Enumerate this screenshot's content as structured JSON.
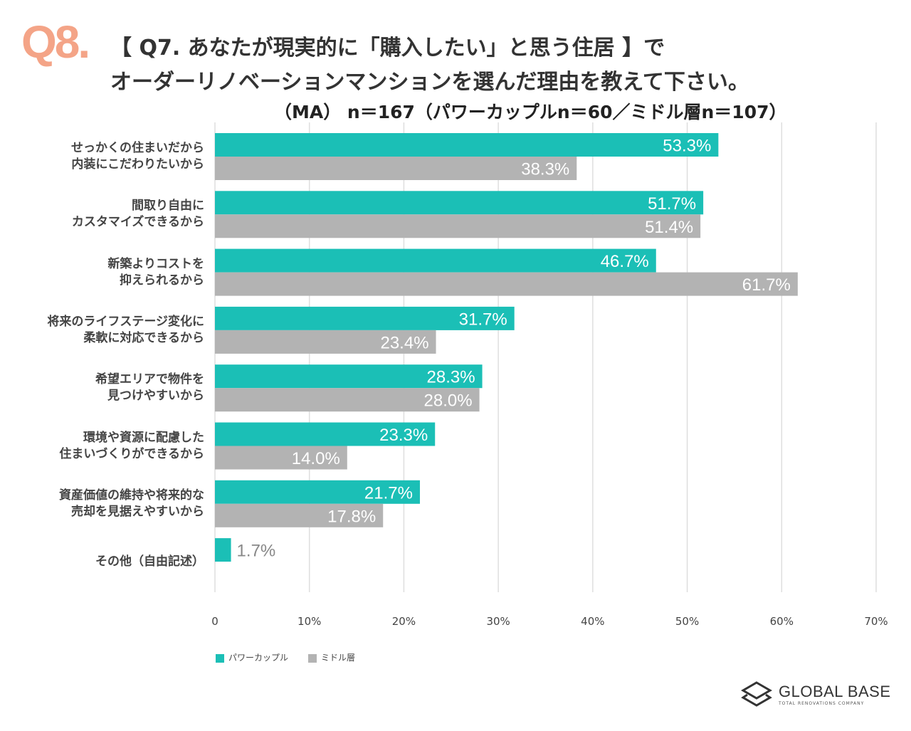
{
  "header": {
    "qnum": "Q8.",
    "title_line1": "【 Q7. あなたが現実的に「購入したい」と思う住居 】で",
    "title_line2": "オーダーリノベーションマンションを選んだ理由を教えて下さい。",
    "subtitle": "（MA） n＝167（パワーカップルn＝60／ミドル層n＝107）"
  },
  "chart_data": {
    "type": "bar",
    "orientation": "horizontal",
    "categories": [
      "せっかくの住まいだから\n内装にこだわりたいから",
      "間取り自由に\nカスタマイズできるから",
      "新築よりコストを\n抑えられるから",
      "将来のライフステージ変化に\n柔軟に対応できるから",
      "希望エリアで物件を\n見つけやすいから",
      "環境や資源に配慮した\n住まいづくりができるから",
      "資産価値の維持や将来的な\n売却を見据えやすいから",
      "その他（自由記述）"
    ],
    "series": [
      {
        "name": "パワーカップル",
        "color": "#1bbfb6",
        "values": [
          53.3,
          51.7,
          46.7,
          31.7,
          28.3,
          23.3,
          21.7,
          1.7
        ]
      },
      {
        "name": "ミドル層",
        "color": "#b3b3b3",
        "values": [
          38.3,
          51.4,
          61.7,
          23.4,
          28.0,
          14.0,
          17.8,
          null
        ]
      }
    ],
    "data_labels": [
      [
        "53.3%",
        "51.7%",
        "46.7%",
        "31.7%",
        "28.3%",
        "23.3%",
        "21.7%",
        "1.7%"
      ],
      [
        "38.3%",
        "51.4%",
        "61.7%",
        "23.4%",
        "28.0%",
        "14.0%",
        "17.8%",
        null
      ]
    ],
    "xlim": [
      0,
      70
    ],
    "xticks": [
      "0",
      "10%",
      "20%",
      "30%",
      "40%",
      "50%",
      "60%",
      "70%"
    ],
    "grid": true,
    "legend_position": "bottom-left"
  },
  "logo": {
    "name": "GLOBAL BASE",
    "tagline": "TOTAL RENOVATIONS COMPANY"
  }
}
